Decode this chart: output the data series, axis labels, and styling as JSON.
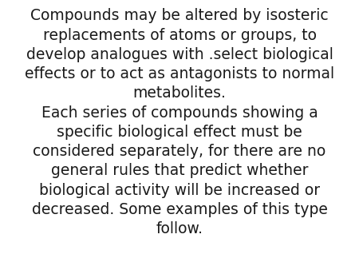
{
  "background_color": "#ffffff",
  "text_color": "#1a1a1a",
  "paragraph1": "Compounds may be altered by isosteric\nreplacements of atoms or groups, to\ndevelop analogues with .select biological\neffects or to act as antagonists to normal\nmetabolites.",
  "paragraph2": "Each series of compounds showing a\nspecific biological effect must be\nconsidered separately, for there are no\ngeneral rules that predict whether\nbiological activity will be increased or\ndecreased. Some examples of this type\nfollow.",
  "font_size": 13.5,
  "fig_width": 4.5,
  "fig_height": 3.38,
  "dpi": 100
}
